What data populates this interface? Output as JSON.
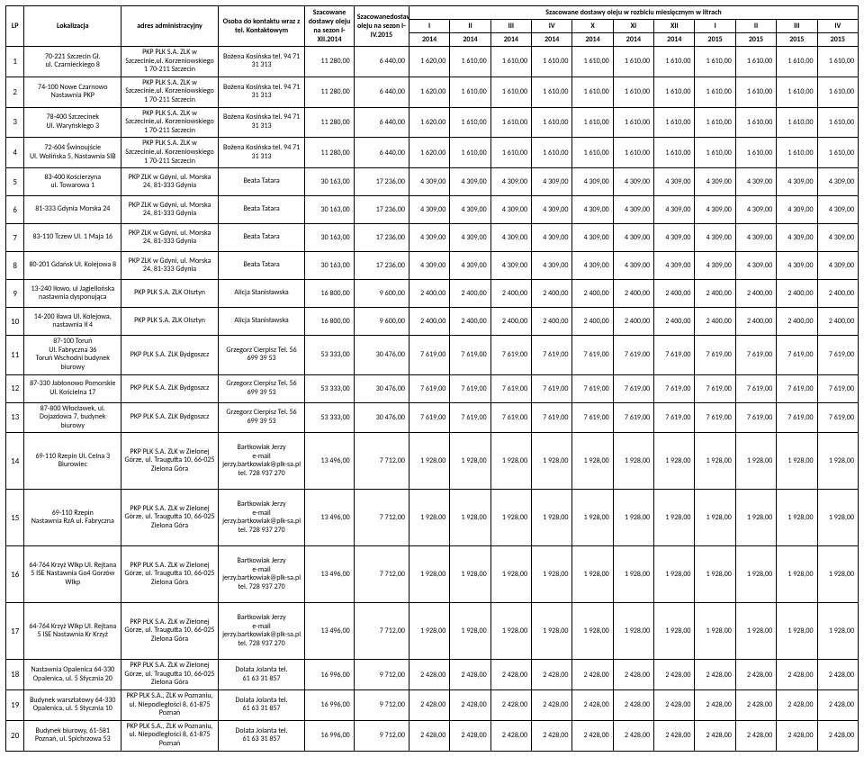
{
  "header": {
    "lp": "LP",
    "lokalizacja": "Lokalizacja",
    "adres": "adres administracyjny",
    "osoba": "Osoba do kontaktu wraz z tel. Kontaktowym",
    "szacowane": "Szacowane dostawy oleju na sezon I- XII.2014",
    "szacowane_dostawy": "Szacowanedostawy oleju na sezon I-IV.2015",
    "miesieczny": "Szacowane dostawy oleju w rozbiciu miesięcznym w litrach",
    "months": [
      "I",
      "II",
      "III",
      "IV",
      "X",
      "XI",
      "XII",
      "I",
      "II",
      "III",
      "IV"
    ],
    "years": [
      "2014",
      "2014",
      "2014",
      "2014",
      "2014",
      "2014",
      "2014",
      "2015",
      "2015",
      "2015",
      "2015"
    ]
  },
  "contacts": {
    "bozena": "Bożena Kosińska tel. 94 71 31 313",
    "beata": "Beata Tatara",
    "alicja": "Alicja Stanisławska",
    "grzegorz": "Grzegorz Cierpisz Tel. 56 699 39 53",
    "bartkowiak": "Bartkowiak Jerzy\ne-mail\njerzy.bartkowiak@plk-sa.pl\ntel. 728 937 270",
    "dolata": "Dolata Jolanta tel.\n61 63 31 857"
  },
  "addr": {
    "szczecin": "PKP PLK S.A. ZLK w Szczecinie,ul. Korzeniowskiego 1 70-211 Szczecin",
    "gdynia": "PKP ZLK w Gdyni, ul. Morska 24, 81-333 Gdynia",
    "olsztyn": "PKP PLK S.A. ZLK Olsztyn",
    "bydgoszcz": "PKP PLK S.A. ZLK Bydgoszcz",
    "zielona": "PKP PLK S.A. ZLK w Zielonej Górze, ul. Traugutta 10, 66-025 Zielona Góra",
    "poznan": "PKP PLK S.A., ZLK w Poznaniu, ul. Niepodległości 8, 61-875 Poznań"
  },
  "rows": [
    {
      "lp": "1",
      "loc": "70-221 Szczecin Gł.\nul. Czarnieckiego 8",
      "addr": "szczecin",
      "contact": "bozena",
      "est": "11 280,00",
      "del": "6 440,00",
      "m": [
        "1 620,00",
        "1 610,00",
        "1 610,00",
        "1 610,00",
        "1 610,00",
        "1 610,00",
        "1 610,00",
        "1 610,00",
        "1 610,00",
        "1 610,00",
        "1 610,00"
      ],
      "tall": false
    },
    {
      "lp": "2",
      "loc": "74-100 Nowe Czarnowo\nNastawnia PKP",
      "addr": "szczecin",
      "contact": "bozena",
      "est": "11 280,00",
      "del": "6 440,00",
      "m": [
        "1 620,00",
        "1 610,00",
        "1 610,00",
        "1 610,00",
        "1 610,00",
        "1 610,00",
        "1 610,00",
        "1 610,00",
        "1 610,00",
        "1 610,00",
        "1 610,00"
      ],
      "tall": false
    },
    {
      "lp": "3",
      "loc": "78-400 Szczecinek\nUl. Waryńskiego 3",
      "addr": "szczecin",
      "contact": "bozena",
      "est": "11 280,00",
      "del": "6 440,00",
      "m": [
        "1 620,00",
        "1 610,00",
        "1 610,00",
        "1 610,00",
        "1 610,00",
        "1 610,00",
        "1 610,00",
        "1 610,00",
        "1 610,00",
        "1 610,00",
        "1 610,00"
      ],
      "tall": false
    },
    {
      "lp": "4",
      "loc": "72-604 Świnoujście\nUl. Wolińska 5, Nastawnia SIB",
      "addr": "szczecin",
      "contact": "bozena",
      "est": "11 280,00",
      "del": "6 440,00",
      "m": [
        "1 620,00",
        "1 610,00",
        "1 610,00",
        "1 610,00",
        "1 610,00",
        "1 610,00",
        "1 610,00",
        "1 610,00",
        "1 610,00",
        "1 610,00",
        "1 610,00"
      ],
      "tall": false
    },
    {
      "lp": "5",
      "loc": "83-400 Kościerzyna\nul. Towarowa 1",
      "addr": "gdynia",
      "contact": "beata",
      "est": "30 163,00",
      "del": "17 236,00",
      "m": [
        "4 309,00",
        "4 309,00",
        "4 309,00",
        "4 309,00",
        "4 309,00",
        "4 309,00",
        "4 309,00",
        "4 309,00",
        "4 309,00",
        "4 309,00",
        "4 309,00"
      ],
      "tall": false
    },
    {
      "lp": "6",
      "loc": "81-333 Gdynia Morska 24",
      "addr": "gdynia",
      "contact": "beata",
      "est": "30 163,00",
      "del": "17 236,00",
      "m": [
        "4 309,00",
        "4 309,00",
        "4 309,00",
        "4 309,00",
        "4 309,00",
        "4 309,00",
        "4 309,00",
        "4 309,00",
        "4 309,00",
        "4 309,00",
        "4 309,00"
      ],
      "tall": false
    },
    {
      "lp": "7",
      "loc": "83-110 Tczew Ul. 1 Maja 16",
      "addr": "gdynia",
      "contact": "beata",
      "est": "30 163,00",
      "del": "17 236,00",
      "m": [
        "4 309,00",
        "4 309,00",
        "4 309,00",
        "4 309,00",
        "4 309,00",
        "4 309,00",
        "4 309,00",
        "4 309,00",
        "4 309,00",
        "4 309,00",
        "4 309,00"
      ],
      "tall": false
    },
    {
      "lp": "8",
      "loc": "80-201 Gdańsk Ul. Kolejowa 8",
      "addr": "gdynia",
      "contact": "beata",
      "est": "30 163,00",
      "del": "17 236,00",
      "m": [
        "4 309,00",
        "4 309,00",
        "4 309,00",
        "4 309,00",
        "4 309,00",
        "4 309,00",
        "4 309,00",
        "4 309,00",
        "4 309,00",
        "4 309,00",
        "4 309,00"
      ],
      "tall": false
    },
    {
      "lp": "9",
      "loc": "13-240 Iłowo, ul Jagiellońska\nnastawnia dysponująca",
      "addr": "olsztyn",
      "contact": "alicja",
      "est": "16 800,00",
      "del": "9 600,00",
      "m": [
        "2 400,00",
        "2 400,00",
        "2 400,00",
        "2 400,00",
        "2 400,00",
        "2 400,00",
        "2 400,00",
        "2 400,00",
        "2 400,00",
        "2 400,00",
        "2 400,00"
      ],
      "tall": false
    },
    {
      "lp": "10",
      "loc": "14-200 Iława Ul. Kolejowa,\nnastawnia Ił 4",
      "addr": "olsztyn",
      "contact": "alicja",
      "est": "16 800,00",
      "del": "9 600,00",
      "m": [
        "2 400,00",
        "2 400,00",
        "2 400,00",
        "2 400,00",
        "2 400,00",
        "2 400,00",
        "2 400,00",
        "2 400,00",
        "2 400,00",
        "2 400,00",
        "2 400,00"
      ],
      "tall": false
    },
    {
      "lp": "11",
      "loc": "87-100 Toruń\nUl. Fabryczna 36\nToruń Wschodni budynek biurowy",
      "addr": "bydgoszcz",
      "contact": "grzegorz",
      "est": "53 333,00",
      "del": "30 476,00",
      "m": [
        "7 619,00",
        "7 619,00",
        "7 619,00",
        "7 619,00",
        "7 619,00",
        "7 619,00",
        "7 619,00",
        "7 619,00",
        "7 619,00",
        "7 619,00",
        "7 619,00"
      ],
      "tall": false
    },
    {
      "lp": "12",
      "loc": "87-330 Jabłonowo Pomorskie Ul. Kościelna 17",
      "addr": "bydgoszcz",
      "contact": "grzegorz",
      "est": "53 333,00",
      "del": "30 476,00",
      "m": [
        "7 619,00",
        "7 619,00",
        "7 619,00",
        "7 619,00",
        "7 619,00",
        "7 619,00",
        "7 619,00",
        "7 619,00",
        "7 619,00",
        "7 619,00",
        "7 619,00"
      ],
      "tall": false
    },
    {
      "lp": "13",
      "loc": "87-800 Włocławek, ul. Dojazdowa 7, budynek biurowy",
      "addr": "bydgoszcz",
      "contact": "grzegorz",
      "est": "53 333,00",
      "del": "30 476,00",
      "m": [
        "7 619,00",
        "7 619,00",
        "7 619,00",
        "7 619,00",
        "7 619,00",
        "7 619,00",
        "7 619,00",
        "7 619,00",
        "7 619,00",
        "7 619,00",
        "7 619,00"
      ],
      "tall": false
    },
    {
      "lp": "14",
      "loc": "69-110 Rzepin Ul. Celna 3 Biurowiec",
      "addr": "zielona",
      "contact": "bartkowiak",
      "est": "13 496,00",
      "del": "7 712,00",
      "m": [
        "1 928,00",
        "1 928,00",
        "1 928,00",
        "1 928,00",
        "1 928,00",
        "1 928,00",
        "1 928,00",
        "1 928,00",
        "1 928,00",
        "1 928,00",
        "1 928,00"
      ],
      "tall": true
    },
    {
      "lp": "15",
      "loc": "69-110 Rzepin\nNastawnia RzA ul. Fabryczna",
      "addr": "zielona",
      "contact": "bartkowiak",
      "est": "13 496,00",
      "del": "7 712,00",
      "m": [
        "1 928,00",
        "1 928,00",
        "1 928,00",
        "1 928,00",
        "1 928,00",
        "1 928,00",
        "1 928,00",
        "1 928,00",
        "1 928,00",
        "1 928,00",
        "1 928,00"
      ],
      "tall": true
    },
    {
      "lp": "16",
      "loc": "64-764 Krzyż Wlkp Ul. Rejtana 5 ISE Nastawnia Go4 Gorzów Wlkp",
      "addr": "zielona",
      "contact": "bartkowiak",
      "est": "13 496,00",
      "del": "7 712,00",
      "m": [
        "1 928,00",
        "1 928,00",
        "1 928,00",
        "1 928,00",
        "1 928,00",
        "1 928,00",
        "1 928,00",
        "1 928,00",
        "1 928,00",
        "1 928,00",
        "1 928,00"
      ],
      "tall": true
    },
    {
      "lp": "17",
      "loc": "64-764 Krzyż Wlkp Ul. Rejtana 5 ISE Nastawnia Kr Krzyż",
      "addr": "zielona",
      "contact": "bartkowiak",
      "est": "13 496,00",
      "del": "7 712,00",
      "m": [
        "1 928,00",
        "1 928,00",
        "1 928,00",
        "1 928,00",
        "1 928,00",
        "1 928,00",
        "1 928,00",
        "1 928,00",
        "1 928,00",
        "1 928,00",
        "1 928,00"
      ],
      "tall": true
    },
    {
      "lp": "18",
      "loc": "Nastawnia Opalenica 64-330 Opalenica, ul. 5 Stycznia 20",
      "addr": "zielona",
      "contact": "dolata",
      "est": "16 996,00",
      "del": "9 712,00",
      "m": [
        "2 428,00",
        "2 428,00",
        "2 428,00",
        "2 428,00",
        "2 428,00",
        "2 428,00",
        "2 428,00",
        "2 428,00",
        "2 428,00",
        "2 428,00",
        "2 428,00"
      ],
      "tall": false
    },
    {
      "lp": "19",
      "loc": "Budynek warsztatowy 64-330 Opalenica, ul. 5 Stycznia 10",
      "addr": "poznan",
      "contact": "dolata",
      "est": "16 996,00",
      "del": "9 712,00",
      "m": [
        "2 428,00",
        "2 428,00",
        "2 428,00",
        "2 428,00",
        "2 428,00",
        "2 428,00",
        "2 428,00",
        "2 428,00",
        "2 428,00",
        "2 428,00",
        "2 428,00"
      ],
      "tall": false
    },
    {
      "lp": "20",
      "loc": "Budynek biurowy, 61-581 Poznań, ul. Spichrzowa 53",
      "addr": "poznan",
      "contact": "dolata",
      "est": "16 996,00",
      "del": "9 712,00",
      "m": [
        "2 428,00",
        "2 428,00",
        "2 428,00",
        "2 428,00",
        "2 428,00",
        "2 428,00",
        "2 428,00",
        "2 428,00",
        "2 428,00",
        "2 428,00",
        "2 428,00"
      ],
      "tall": false
    }
  ]
}
